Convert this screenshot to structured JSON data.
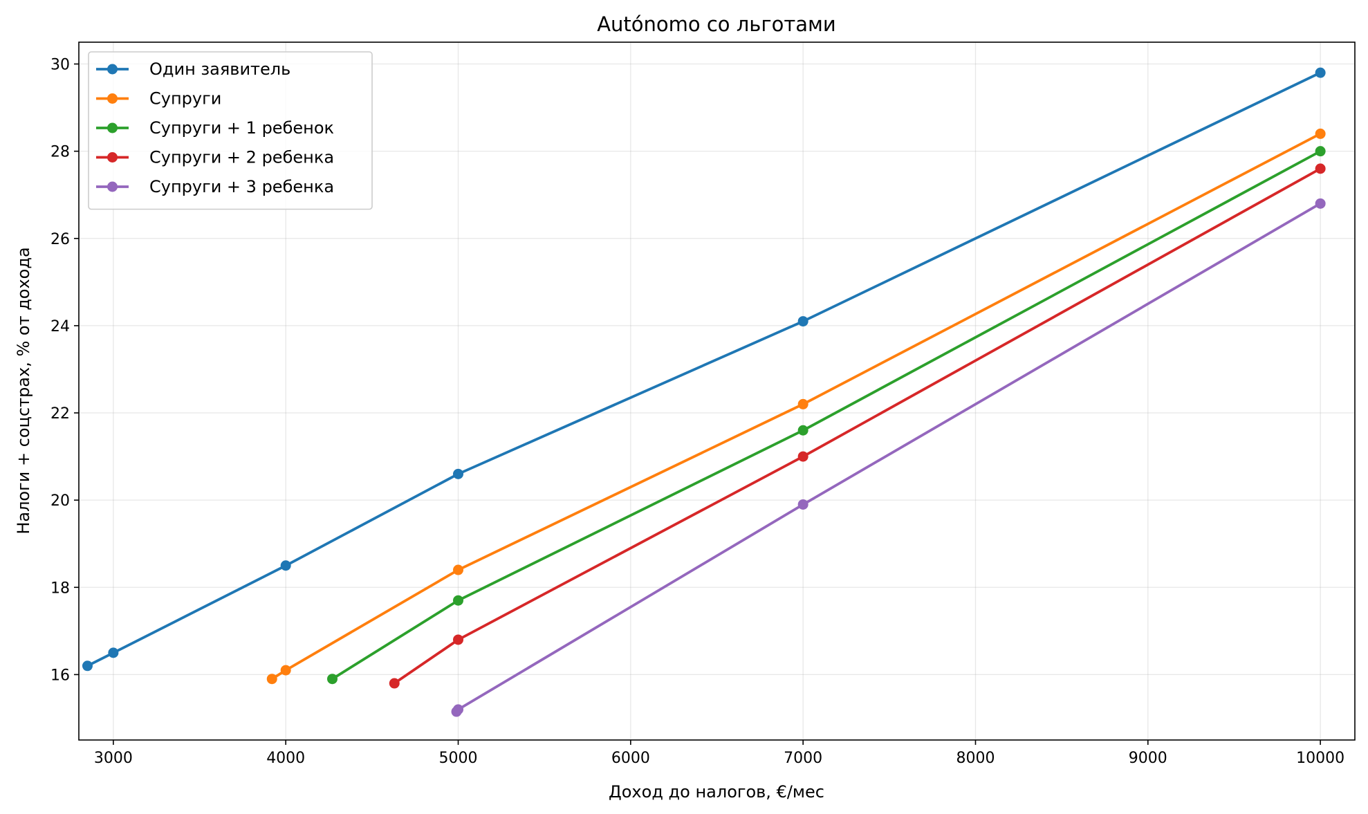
{
  "chart_data": {
    "type": "line",
    "title": "Autónomo со льготами",
    "xlabel": "Доход до налогов, €/мес",
    "ylabel": "Налоги + соцстрах, % от дохода",
    "xlim": [
      2800,
      10200
    ],
    "ylim": [
      14.5,
      30.5
    ],
    "xticks": [
      3000,
      4000,
      5000,
      6000,
      7000,
      8000,
      9000,
      10000
    ],
    "yticks": [
      16,
      18,
      20,
      22,
      24,
      26,
      28,
      30
    ],
    "grid": true,
    "legend_position": "top-left",
    "series": [
      {
        "name": "Один заявитель",
        "color": "#1f77b4",
        "x": [
          2850,
          3000,
          4000,
          5000,
          7000,
          10000
        ],
        "y": [
          16.2,
          16.5,
          18.5,
          20.6,
          24.1,
          29.8
        ]
      },
      {
        "name": "Супруги",
        "color": "#ff7f0e",
        "x": [
          3920,
          4000,
          5000,
          7000,
          10000
        ],
        "y": [
          15.9,
          16.1,
          18.4,
          22.2,
          28.4
        ]
      },
      {
        "name": "Супруги + 1 ребенок",
        "color": "#2ca02c",
        "x": [
          4270,
          5000,
          7000,
          10000
        ],
        "y": [
          15.9,
          17.7,
          21.6,
          28.0
        ]
      },
      {
        "name": "Супруги + 2 ребенка",
        "color": "#d62728",
        "x": [
          4630,
          5000,
          7000,
          10000
        ],
        "y": [
          15.8,
          16.8,
          21.0,
          27.6
        ]
      },
      {
        "name": "Супруги + 3 ребенка",
        "color": "#9467bd",
        "x": [
          4990,
          5000,
          7000,
          10000
        ],
        "y": [
          15.15,
          15.2,
          19.9,
          26.8
        ]
      }
    ]
  }
}
